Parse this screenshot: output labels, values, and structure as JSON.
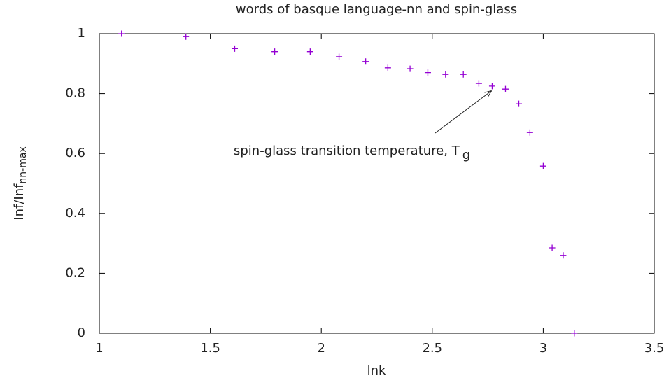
{
  "chart_data": {
    "type": "scatter",
    "title": "words of basque language-nn and spin-glass",
    "x_label": "lnk",
    "y_label": {
      "text": "Inf/Inf",
      "subscript": "nn-max"
    },
    "annotation": {
      "text": "spin-glass transition temperature, T",
      "subscript": "g"
    },
    "color": "#9400d3",
    "x": [
      1.1,
      1.39,
      1.61,
      1.79,
      1.95,
      2.08,
      2.2,
      2.3,
      2.4,
      2.48,
      2.56,
      2.64,
      2.71,
      2.77,
      2.83,
      2.89,
      2.94,
      3.0,
      3.04,
      3.09,
      3.14
    ],
    "values": [
      1.0,
      0.99,
      0.95,
      0.94,
      0.94,
      0.923,
      0.907,
      0.886,
      0.883,
      0.87,
      0.864,
      0.864,
      0.834,
      0.825,
      0.815,
      0.766,
      0.67,
      0.558,
      0.285,
      0.26,
      0
    ],
    "xlim": [
      1,
      3.5
    ],
    "xticks": [
      1,
      1.5,
      2,
      2.5,
      3,
      3.5
    ],
    "ylim": [
      0,
      1
    ],
    "yticks": [
      0,
      0.2,
      0.4,
      0.6,
      0.8,
      1
    ]
  }
}
